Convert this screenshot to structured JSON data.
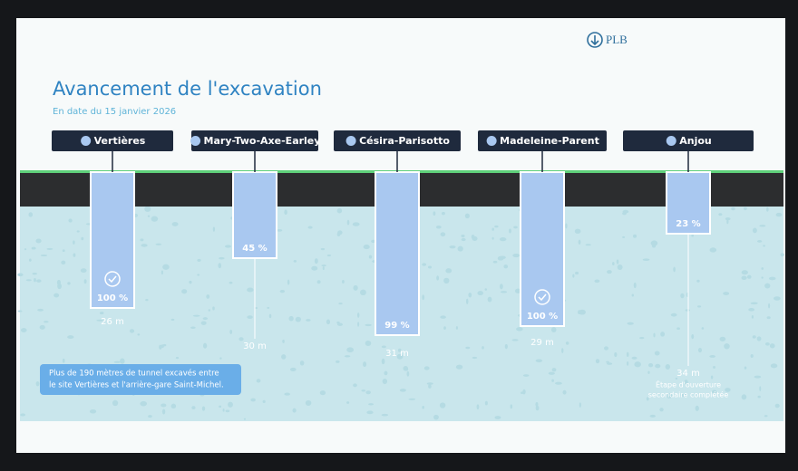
{
  "header": {
    "logo": "PLB",
    "title": "Avancement de l'excavation",
    "subtitle": "En date du 15 janvier 2026"
  },
  "shafts": [
    {
      "name": "Vertières",
      "progress": "100 %",
      "depth": "26 m"
    },
    {
      "name": "Mary-Two-Axe-Earley",
      "progress": "45 %",
      "depth": "30 m"
    },
    {
      "name": "Césira-Parisotto",
      "progress": "99 %",
      "depth": "31 m"
    },
    {
      "name": "Madeleine-Parent",
      "progress": "100 %",
      "depth": "29 m"
    },
    {
      "name": "Anjou",
      "progress": "23 %",
      "depth": "34 m",
      "caption": [
        "Étape d'ouverture",
        "secondaire complétée"
      ]
    }
  ],
  "note": {
    "lines": [
      "Plus de 190 mètres de tunnel excavés entre",
      "le site Vertières et l'arrière-gare Saint-Michel."
    ]
  }
}
